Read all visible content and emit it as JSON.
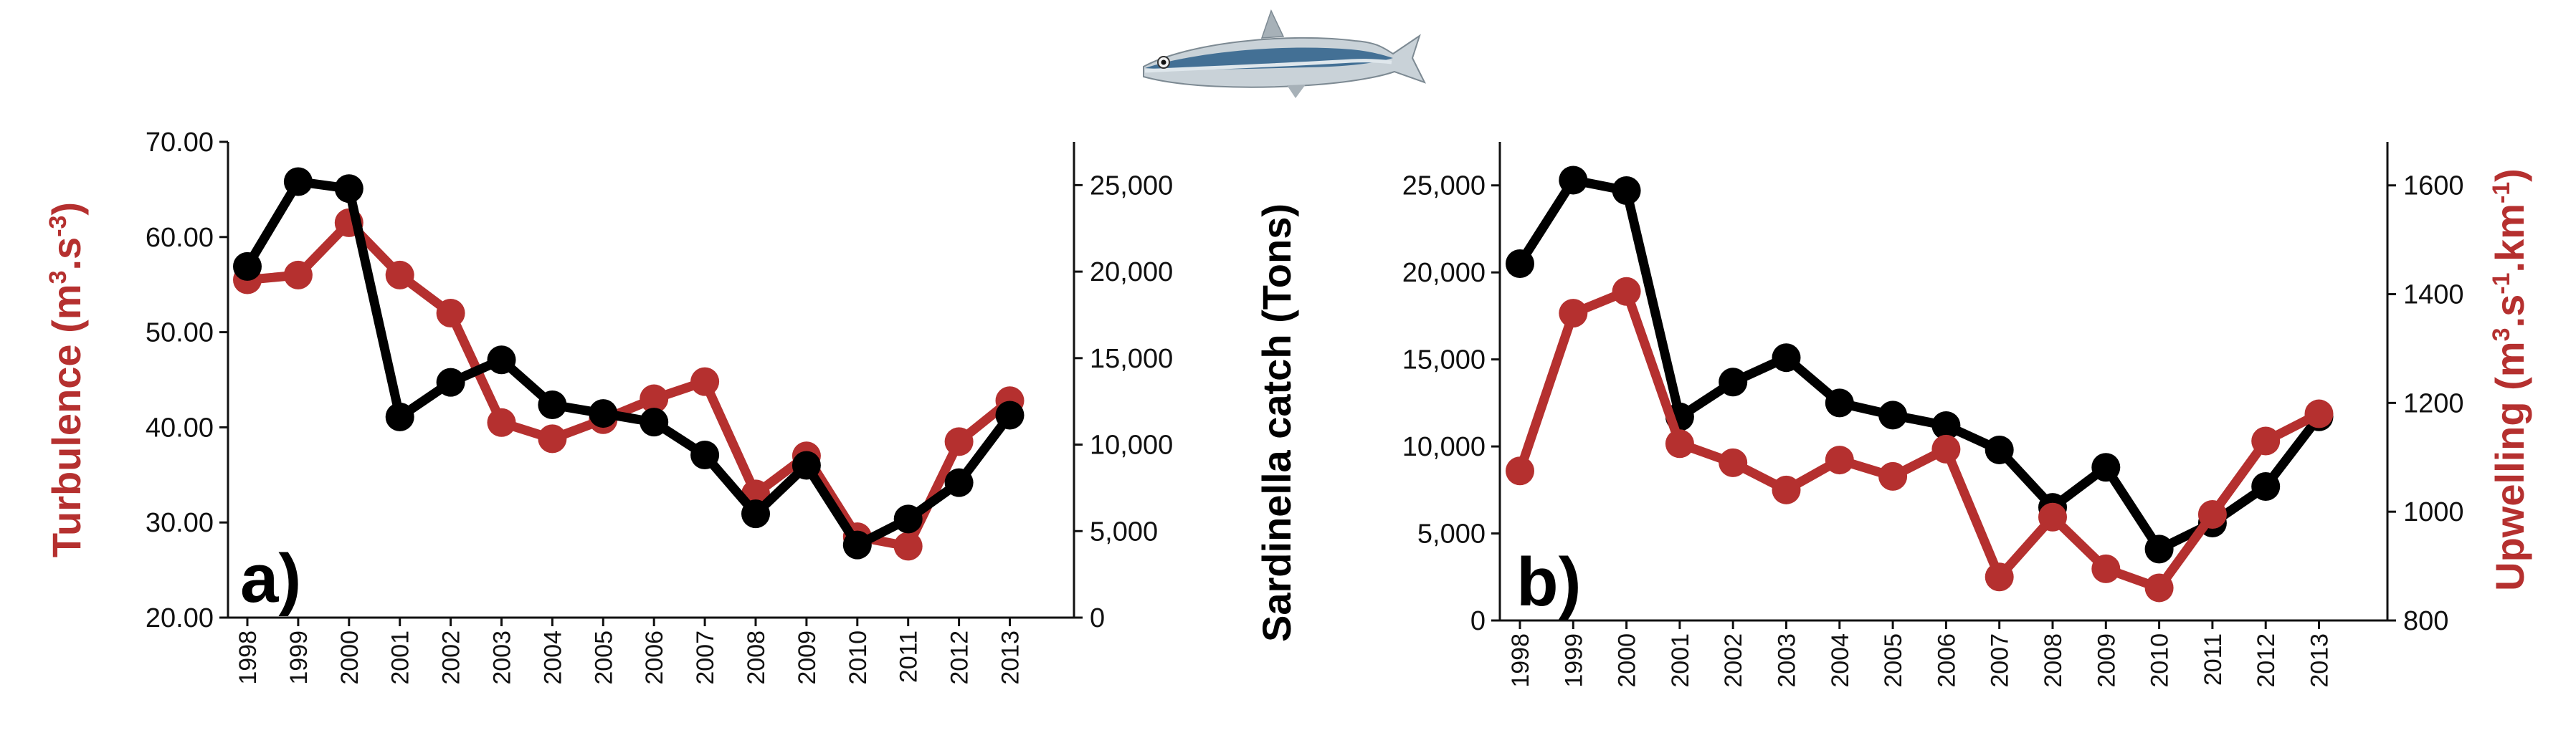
{
  "figure": {
    "fish_icon": "sardine-fish-illustration",
    "colors": {
      "catch": "#000000",
      "environment": "#b5302f",
      "axis": "#111111"
    }
  },
  "chart_data": [
    {
      "panel_label": "a)",
      "type": "line",
      "x": [
        "1998",
        "1999",
        "2000",
        "2001",
        "2002",
        "2003",
        "2004",
        "2005",
        "2006",
        "2007",
        "2008",
        "2009",
        "2010",
        "2011",
        "2012",
        "2013"
      ],
      "left_axis": {
        "label_main": "Turbulence (m",
        "label_unit1": "3",
        "label_mid": ".s",
        "label_unit2": "-3",
        "label_end": ")",
        "ylim": [
          20,
          70
        ],
        "ticks": [
          "20.00",
          "30.00",
          "40.00",
          "50.00",
          "60.00",
          "70.00"
        ]
      },
      "right_axis": {
        "label": "Sardinella catch (Tons)",
        "ylim": [
          0,
          27500
        ],
        "ticks": [
          "0",
          "5,000",
          "10,000",
          "15,000",
          "20,000",
          "25,000"
        ]
      },
      "series": [
        {
          "axis": "left",
          "color": "#b5302f",
          "values": [
            55.5,
            56.0,
            61.5,
            56.0,
            52.0,
            40.5,
            38.8,
            40.8,
            43.0,
            44.8,
            33.0,
            37.0,
            28.5,
            27.5,
            38.5,
            42.8
          ]
        },
        {
          "axis": "right",
          "color": "#000000",
          "values": [
            20300,
            25200,
            24800,
            11600,
            13600,
            14900,
            12300,
            11800,
            11300,
            9400,
            6000,
            8800,
            4200,
            5700,
            7800,
            11700
          ]
        }
      ]
    },
    {
      "panel_label": "b)",
      "type": "line",
      "x": [
        "1998",
        "1999",
        "2000",
        "2001",
        "2002",
        "2003",
        "2004",
        "2005",
        "2006",
        "2007",
        "2008",
        "2009",
        "2010",
        "2011",
        "2012",
        "2013"
      ],
      "left_axis": {
        "ylim": [
          0,
          27500
        ],
        "ticks": [
          "0",
          "5,000",
          "10,000",
          "15,000",
          "20,000",
          "25,000"
        ]
      },
      "right_axis": {
        "label_main": "Upwelling (m",
        "label_unit1": "3",
        "label_mid": ".s",
        "label_unit2": "-1",
        "label_mid2": ".km",
        "label_unit3": "-1",
        "label_end": ")",
        "ylim": [
          800,
          1680
        ],
        "ticks": [
          "800",
          "1000",
          "1200",
          "1400",
          "1600"
        ]
      },
      "series": [
        {
          "axis": "left",
          "color": "#000000",
          "values": [
            20500,
            25300,
            24700,
            11700,
            13700,
            15100,
            12500,
            11800,
            11200,
            9800,
            6500,
            8800,
            4100,
            5600,
            7700,
            11700
          ]
        },
        {
          "axis": "right",
          "color": "#b5302f",
          "values": [
            1075,
            1365,
            1405,
            1125,
            1090,
            1040,
            1095,
            1065,
            1115,
            880,
            990,
            895,
            860,
            995,
            1130,
            1180
          ]
        }
      ]
    }
  ]
}
